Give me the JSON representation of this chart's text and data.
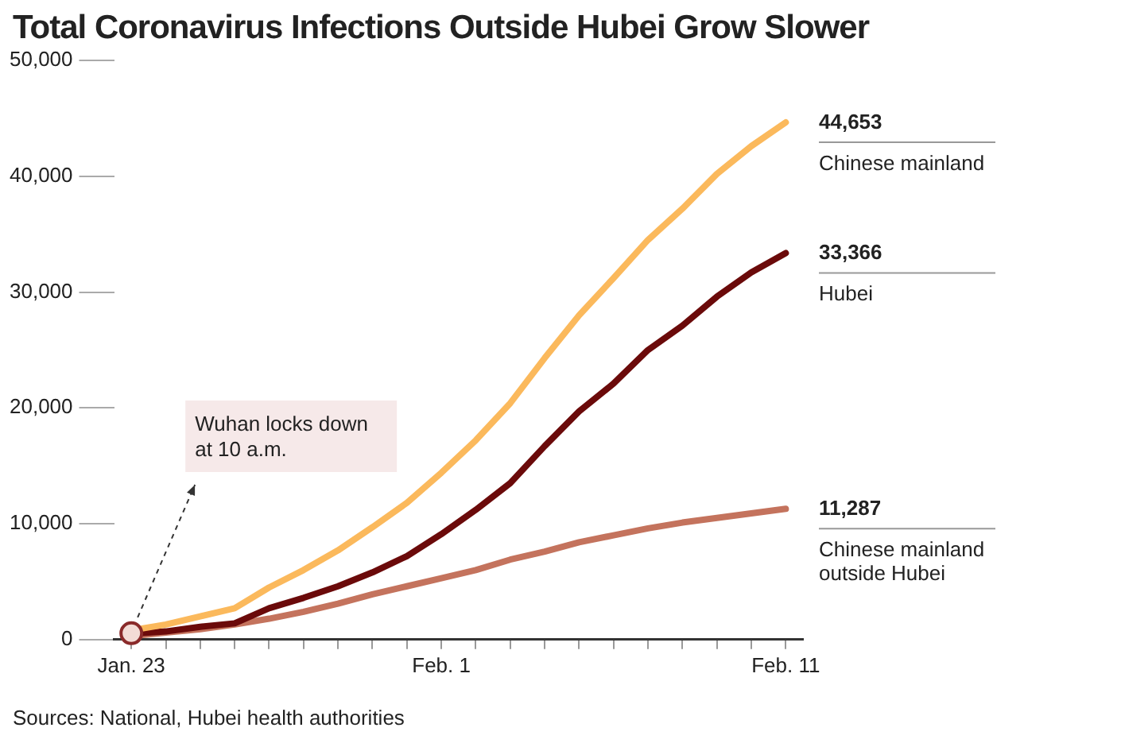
{
  "chart_data": {
    "type": "line",
    "title": "Total Coronavirus Infections Outside Hubei Grow Slower",
    "categories": [
      "Jan. 23",
      null,
      null,
      null,
      null,
      null,
      null,
      null,
      null,
      "Feb. 1",
      null,
      null,
      null,
      null,
      null,
      null,
      null,
      null,
      null,
      "Feb. 11"
    ],
    "series": [
      {
        "name": "Chinese mainland",
        "color": "#fbb95c",
        "values": [
          800,
          1300,
          2000,
          2700,
          4500,
          6000,
          7700,
          9700,
          11800,
          14400,
          17200,
          20400,
          24300,
          28000,
          31200,
          34500,
          37200,
          40200,
          42600,
          44653
        ],
        "value_labels": [
          null,
          null,
          null,
          null,
          null,
          null,
          null,
          null,
          null,
          null,
          null,
          null,
          null,
          null,
          null,
          null,
          null,
          null,
          null,
          "44,653"
        ]
      },
      {
        "name": "Hubei",
        "color": "#6b0a0a",
        "values": [
          500,
          700,
          1100,
          1400,
          2700,
          3600,
          4600,
          5800,
          7200,
          9100,
          11200,
          13500,
          16700,
          19700,
          22100,
          25000,
          27100,
          29600,
          31700,
          33366
        ],
        "value_labels": [
          null,
          null,
          null,
          null,
          null,
          null,
          null,
          null,
          null,
          null,
          null,
          null,
          null,
          null,
          null,
          null,
          null,
          null,
          null,
          "33,366"
        ]
      },
      {
        "name": "Chinese mainland outside Hubei",
        "color": "#c4735d",
        "values": [
          300,
          600,
          900,
          1300,
          1800,
          2400,
          3100,
          3900,
          4600,
          5300,
          6000,
          6900,
          7600,
          8400,
          9000,
          9600,
          10100,
          10500,
          10900,
          11287
        ],
        "value_labels": [
          null,
          null,
          null,
          null,
          null,
          null,
          null,
          null,
          null,
          null,
          null,
          null,
          null,
          null,
          null,
          null,
          null,
          null,
          null,
          "11,287"
        ]
      }
    ],
    "ylim": [
      0,
      50000
    ],
    "yticks": [
      0,
      {
        "value": 10000,
        "label": "10,000"
      },
      {
        "value": 20000,
        "label": "20,000"
      },
      {
        "value": 30000,
        "label": "30,000"
      },
      {
        "value": 40000,
        "label": "40,000"
      },
      {
        "value": 50000,
        "label": "50,000"
      }
    ],
    "grid": false,
    "legend": false,
    "marker": "none",
    "line_style": "solid",
    "annotations": [
      "Wuhan locks down at 10 a.m.",
      "Sources: National, Hubei health authorities"
    ]
  }
}
